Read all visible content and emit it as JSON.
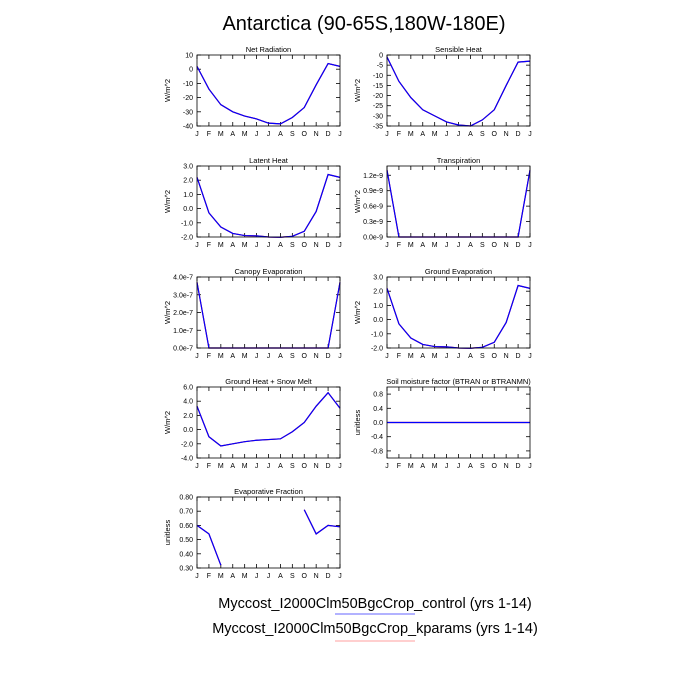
{
  "title": "Antarctica (90-65S,180W-180E)",
  "chart_data": [
    {
      "type": "line",
      "title": "Net Radiation",
      "ylabel": "W/m^2",
      "categories": [
        "J",
        "F",
        "M",
        "A",
        "M",
        "J",
        "J",
        "A",
        "S",
        "O",
        "N",
        "D",
        "J"
      ],
      "series": [
        {
          "name": "Myccost_I2000Clm50BgcCrop_control (yrs 1-14)",
          "color": "#0000ff",
          "values": [
            2,
            -14,
            -25,
            -30,
            -33,
            -35,
            -38,
            -38.5,
            -34,
            -27,
            -11,
            4,
            2
          ]
        },
        {
          "name": "Myccost_I2000Clm50BgcCrop_kparams (yrs 1-14)",
          "color": "#ff0000",
          "values": [
            2,
            -14,
            -25,
            -30,
            -33,
            -35,
            -38,
            -38.5,
            -34,
            -27,
            -11,
            4,
            2
          ]
        }
      ],
      "ylim": [
        -40,
        10
      ],
      "yticks": [
        -40,
        -30,
        -20,
        -10,
        0,
        10
      ]
    },
    {
      "type": "line",
      "title": "Sensible Heat",
      "ylabel": "W/m^2",
      "categories": [
        "J",
        "F",
        "M",
        "A",
        "M",
        "J",
        "J",
        "A",
        "S",
        "O",
        "N",
        "D",
        "J"
      ],
      "series": [
        {
          "name": "Myccost_I2000Clm50BgcCrop_control (yrs 1-14)",
          "color": "#0000ff",
          "values": [
            -1,
            -13,
            -21,
            -27,
            -30,
            -33,
            -34.5,
            -35,
            -32,
            -27,
            -15,
            -3.5,
            -3
          ]
        },
        {
          "name": "Myccost_I2000Clm50BgcCrop_kparams (yrs 1-14)",
          "color": "#ff0000",
          "values": [
            -1,
            -13,
            -21,
            -27,
            -30,
            -33,
            -34.5,
            -35,
            -32,
            -27,
            -15,
            -3.5,
            -3
          ]
        }
      ],
      "ylim": [
        -35,
        0
      ],
      "yticks": [
        -35,
        -30,
        -25,
        -20,
        -15,
        -10,
        -5,
        0
      ]
    },
    {
      "type": "line",
      "title": "Latent Heat",
      "ylabel": "W/m^2",
      "categories": [
        "J",
        "F",
        "M",
        "A",
        "M",
        "J",
        "J",
        "A",
        "S",
        "O",
        "N",
        "D",
        "J"
      ],
      "series": [
        {
          "name": "Myccost_I2000Clm50BgcCrop_control (yrs 1-14)",
          "color": "#0000ff",
          "values": [
            2.2,
            -0.3,
            -1.3,
            -1.75,
            -1.9,
            -1.92,
            -2.0,
            -2.02,
            -1.95,
            -1.6,
            -0.2,
            2.4,
            2.2
          ]
        },
        {
          "name": "Myccost_I2000Clm50BgcCrop_kparams (yrs 1-14)",
          "color": "#ff0000",
          "values": [
            2.2,
            -0.3,
            -1.3,
            -1.75,
            -1.9,
            -1.92,
            -2.0,
            -2.02,
            -1.95,
            -1.6,
            -0.2,
            2.4,
            2.2
          ]
        }
      ],
      "ylim": [
        -2,
        3
      ],
      "yticks": [
        {
          "value": -2,
          "label": "-2.0"
        },
        {
          "value": -1,
          "label": "-1.0"
        },
        {
          "value": 0,
          "label": "0.0"
        },
        {
          "value": 1,
          "label": "1.0"
        },
        {
          "value": 2,
          "label": "2.0"
        },
        {
          "value": 3,
          "label": "3.0"
        }
      ]
    },
    {
      "type": "line",
      "title": "Transpiration",
      "ylabel": "W/m^2",
      "categories": [
        "J",
        "F",
        "M",
        "A",
        "M",
        "J",
        "J",
        "A",
        "S",
        "O",
        "N",
        "D",
        "J"
      ],
      "series": [
        {
          "name": "Myccost_I2000Clm50BgcCrop_control (yrs 1-14)",
          "color": "#0000ff",
          "values": [
            1.3e-09,
            0,
            0,
            0,
            0,
            0,
            0,
            0,
            0,
            0,
            0,
            0,
            1.3e-09
          ]
        },
        {
          "name": "Myccost_I2000Clm50BgcCrop_kparams (yrs 1-14)",
          "color": "#ff0000",
          "values": [
            1.3e-09,
            0,
            0,
            0,
            0,
            0,
            0,
            0,
            0,
            0,
            0,
            0,
            1.3e-09
          ]
        }
      ],
      "ylim": [
        0,
        1.38e-09
      ],
      "yticks": [
        {
          "value": 0,
          "label": "0.0e-9"
        },
        {
          "value": 3e-10,
          "label": "0.3e-9"
        },
        {
          "value": 6e-10,
          "label": "0.6e-9"
        },
        {
          "value": 9e-10,
          "label": "0.9e-9"
        },
        {
          "value": 1.2e-09,
          "label": "1.2e-9"
        }
      ]
    },
    {
      "type": "line",
      "title": "Canopy Evaporation",
      "ylabel": "W/m^2",
      "categories": [
        "J",
        "F",
        "M",
        "A",
        "M",
        "J",
        "J",
        "A",
        "S",
        "O",
        "N",
        "D",
        "J"
      ],
      "series": [
        {
          "name": "Myccost_I2000Clm50BgcCrop_control (yrs 1-14)",
          "color": "#0000ff",
          "values": [
            3.7e-07,
            0,
            0,
            0,
            0,
            0,
            0,
            0,
            0,
            0,
            0,
            0,
            3.7e-07
          ]
        },
        {
          "name": "Myccost_I2000Clm50BgcCrop_kparams (yrs 1-14)",
          "color": "#ff0000",
          "values": [
            3.7e-07,
            0,
            0,
            0,
            0,
            0,
            0,
            0,
            0,
            0,
            0,
            0,
            3.7e-07
          ]
        }
      ],
      "ylim": [
        0,
        4e-07
      ],
      "yticks": [
        {
          "value": 0,
          "label": "0.0e-7"
        },
        {
          "value": 1e-07,
          "label": "1.0e-7"
        },
        {
          "value": 2e-07,
          "label": "2.0e-7"
        },
        {
          "value": 3e-07,
          "label": "3.0e-7"
        },
        {
          "value": 4e-07,
          "label": "4.0e-7"
        }
      ]
    },
    {
      "type": "line",
      "title": "Ground Evaporation",
      "ylabel": "W/m^2",
      "categories": [
        "J",
        "F",
        "M",
        "A",
        "M",
        "J",
        "J",
        "A",
        "S",
        "O",
        "N",
        "D",
        "J"
      ],
      "series": [
        {
          "name": "Myccost_I2000Clm50BgcCrop_control (yrs 1-14)",
          "color": "#0000ff",
          "values": [
            2.2,
            -0.3,
            -1.3,
            -1.75,
            -1.9,
            -1.92,
            -2.0,
            -2.02,
            -1.95,
            -1.6,
            -0.2,
            2.4,
            2.2
          ]
        },
        {
          "name": "Myccost_I2000Clm50BgcCrop_kparams (yrs 1-14)",
          "color": "#ff0000",
          "values": [
            2.2,
            -0.3,
            -1.3,
            -1.75,
            -1.9,
            -1.92,
            -2.0,
            -2.02,
            -1.95,
            -1.6,
            -0.2,
            2.4,
            2.2
          ]
        }
      ],
      "ylim": [
        -2,
        3
      ],
      "yticks": [
        {
          "value": -2,
          "label": "-2.0"
        },
        {
          "value": -1,
          "label": "-1.0"
        },
        {
          "value": 0,
          "label": "0.0"
        },
        {
          "value": 1,
          "label": "1.0"
        },
        {
          "value": 2,
          "label": "2.0"
        },
        {
          "value": 3,
          "label": "3.0"
        }
      ]
    },
    {
      "type": "line",
      "title": "Ground Heat + Snow Melt",
      "ylabel": "W/m^2",
      "categories": [
        "J",
        "F",
        "M",
        "A",
        "M",
        "J",
        "J",
        "A",
        "S",
        "O",
        "N",
        "D",
        "J"
      ],
      "series": [
        {
          "name": "Myccost_I2000Clm50BgcCrop_control (yrs 1-14)",
          "color": "#0000ff",
          "values": [
            3.3,
            -1.0,
            -2.3,
            -2.0,
            -1.7,
            -1.5,
            -1.4,
            -1.3,
            -0.3,
            1.0,
            3.3,
            5.2,
            3.0
          ]
        },
        {
          "name": "Myccost_I2000Clm50BgcCrop_kparams (yrs 1-14)",
          "color": "#ff0000",
          "values": [
            3.3,
            -1.0,
            -2.3,
            -2.0,
            -1.7,
            -1.5,
            -1.4,
            -1.3,
            -0.3,
            1.0,
            3.3,
            5.2,
            3.0
          ]
        }
      ],
      "ylim": [
        -4,
        6
      ],
      "yticks": [
        {
          "value": -4,
          "label": "-4.0"
        },
        {
          "value": -2,
          "label": "-2.0"
        },
        {
          "value": 0,
          "label": "0.0"
        },
        {
          "value": 2,
          "label": "2.0"
        },
        {
          "value": 4,
          "label": "4.0"
        },
        {
          "value": 6,
          "label": "6.0"
        }
      ]
    },
    {
      "type": "line",
      "title": "Soil moisture factor (BTRAN or BTRANMN)",
      "ylabel": "unitless",
      "categories": [
        "J",
        "F",
        "M",
        "A",
        "M",
        "J",
        "J",
        "A",
        "S",
        "O",
        "N",
        "D",
        "J"
      ],
      "series": [
        {
          "name": "Myccost_I2000Clm50BgcCrop_control (yrs 1-14)",
          "color": "#0000ff",
          "values": [
            0,
            0,
            0,
            0,
            0,
            0,
            0,
            0,
            0,
            0,
            0,
            0,
            0
          ]
        },
        {
          "name": "Myccost_I2000Clm50BgcCrop_kparams (yrs 1-14)",
          "color": "#ff0000",
          "values": [
            0,
            0,
            0,
            0,
            0,
            0,
            0,
            0,
            0,
            0,
            0,
            0,
            0
          ]
        }
      ],
      "ylim": [
        -1,
        1
      ],
      "yticks": [
        {
          "value": -0.8,
          "label": "-0.8"
        },
        {
          "value": -0.4,
          "label": "-0.4"
        },
        {
          "value": 0,
          "label": "0.0"
        },
        {
          "value": 0.4,
          "label": "0.4"
        },
        {
          "value": 0.8,
          "label": "0.8"
        }
      ]
    },
    {
      "type": "line",
      "title": "Evaporative Fraction",
      "ylabel": "unitless",
      "categories": [
        "J",
        "F",
        "M",
        "A",
        "M",
        "J",
        "J",
        "A",
        "S",
        "O",
        "N",
        "D",
        "J"
      ],
      "series": [
        {
          "name": "Myccost_I2000Clm50BgcCrop_control (yrs 1-14)",
          "color": "#0000ff",
          "values": [
            0.6,
            0.54,
            0.32,
            null,
            null,
            null,
            null,
            null,
            null,
            0.71,
            0.54,
            0.6,
            0.59
          ]
        },
        {
          "name": "Myccost_I2000Clm50BgcCrop_kparams (yrs 1-14)",
          "color": "#ff0000",
          "values": [
            0.6,
            0.54,
            0.32,
            null,
            null,
            null,
            null,
            null,
            null,
            0.71,
            0.54,
            0.6,
            0.59
          ]
        }
      ],
      "ylim": [
        0.3,
        0.8
      ],
      "yticks": [
        {
          "value": 0.3,
          "label": "0.30"
        },
        {
          "value": 0.4,
          "label": "0.40"
        },
        {
          "value": 0.5,
          "label": "0.50"
        },
        {
          "value": 0.6,
          "label": "0.60"
        },
        {
          "value": 0.7,
          "label": "0.70"
        },
        {
          "value": 0.8,
          "label": "0.80"
        }
      ]
    }
  ]
}
